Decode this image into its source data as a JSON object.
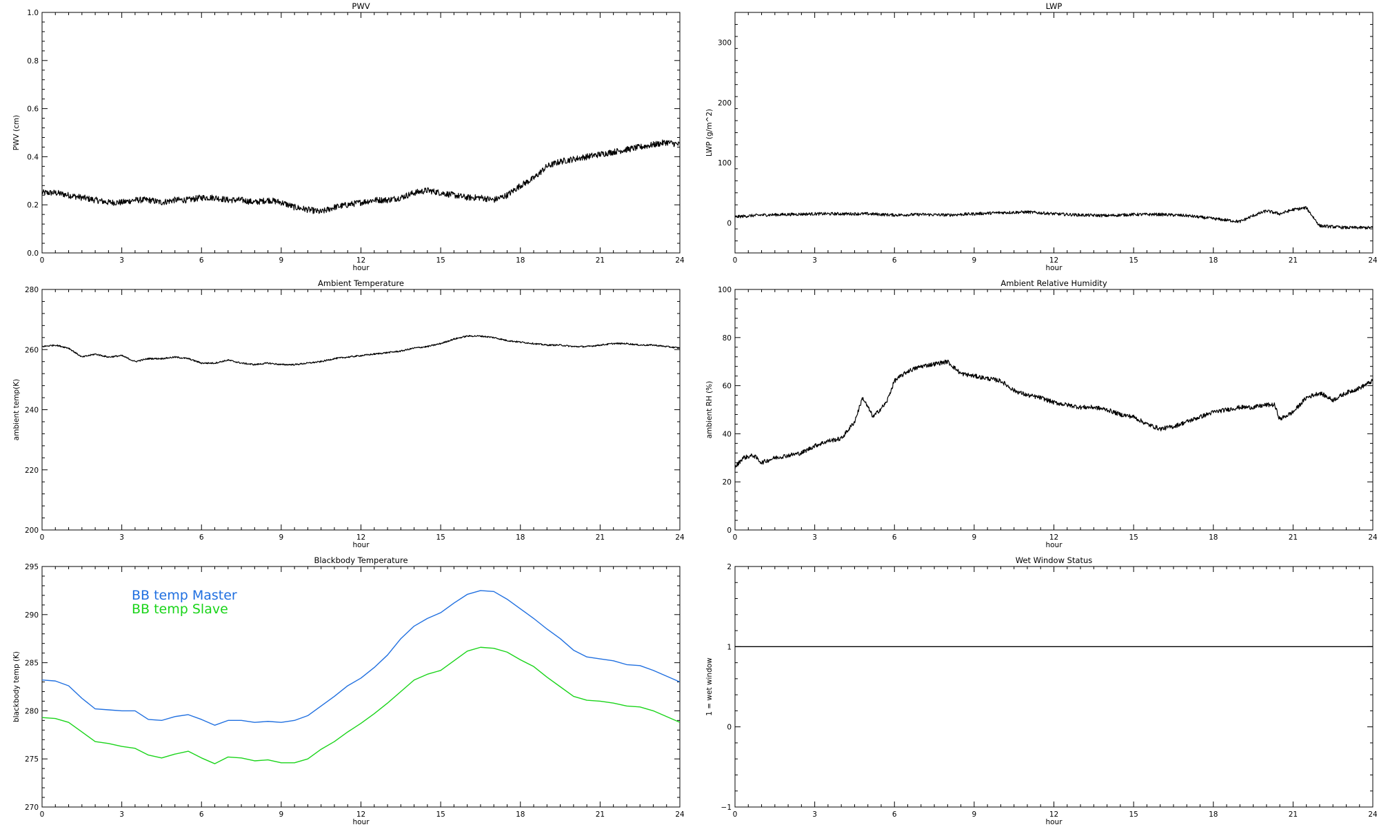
{
  "chart_data": [
    {
      "type": "line",
      "title": "PWV",
      "xlabel": "hour",
      "ylabel": "PWV (cm)",
      "xlim": [
        0,
        24
      ],
      "ylim": [
        0,
        1
      ],
      "xticks": [
        0,
        3,
        6,
        9,
        12,
        15,
        18,
        21,
        24
      ],
      "yticks": [
        0,
        0.2,
        0.4,
        0.6,
        0.8,
        1.0
      ],
      "yticklabels": [
        "0.0",
        "0.2",
        "0.4",
        "0.6",
        "0.8",
        "1.0"
      ],
      "grid": false,
      "series": [
        {
          "color": "#000000",
          "noise": 0.013,
          "x": [
            0,
            0.5,
            1,
            1.5,
            2,
            2.5,
            3,
            3.5,
            4,
            4.5,
            5,
            5.5,
            6,
            6.5,
            7,
            7.5,
            8,
            8.5,
            9,
            9.5,
            10,
            10.5,
            11,
            11.5,
            12,
            12.5,
            13,
            13.5,
            14,
            14.5,
            15,
            15.5,
            16,
            16.5,
            17,
            17.5,
            18,
            18.5,
            19,
            19.5,
            20,
            20.5,
            21,
            21.5,
            22,
            22.5,
            23,
            23.5,
            24
          ],
          "y": [
            0.25,
            0.25,
            0.24,
            0.23,
            0.22,
            0.21,
            0.21,
            0.22,
            0.22,
            0.21,
            0.22,
            0.22,
            0.23,
            0.23,
            0.22,
            0.22,
            0.21,
            0.22,
            0.21,
            0.19,
            0.18,
            0.17,
            0.19,
            0.2,
            0.21,
            0.22,
            0.22,
            0.23,
            0.25,
            0.26,
            0.25,
            0.24,
            0.23,
            0.23,
            0.22,
            0.24,
            0.28,
            0.31,
            0.36,
            0.38,
            0.39,
            0.4,
            0.41,
            0.42,
            0.43,
            0.44,
            0.45,
            0.46,
            0.45
          ]
        }
      ]
    },
    {
      "type": "line",
      "title": "LWP",
      "xlabel": "hour",
      "ylabel": "LWP (g/m^2)",
      "xlim": [
        0,
        24
      ],
      "ylim": [
        -50,
        350
      ],
      "xticks": [
        0,
        3,
        6,
        9,
        12,
        15,
        18,
        21,
        24
      ],
      "yticks": [
        0,
        100,
        200,
        300
      ],
      "yticklabels": [
        "0",
        "100",
        "200",
        "300"
      ],
      "grid": false,
      "series": [
        {
          "color": "#000000",
          "noise": 2.5,
          "x": [
            0,
            1,
            2,
            3,
            4,
            5,
            6,
            7,
            8,
            9,
            10,
            11,
            12,
            13,
            14,
            15,
            16,
            17,
            18,
            19,
            19.5,
            20,
            20.5,
            21,
            21.5,
            22,
            23,
            24
          ],
          "y": [
            10,
            13,
            14,
            15,
            15,
            15,
            13,
            14,
            13,
            15,
            17,
            18,
            15,
            13,
            12,
            14,
            14,
            12,
            7,
            2,
            12,
            20,
            15,
            22,
            25,
            -5,
            -8,
            -8
          ]
        }
      ]
    },
    {
      "type": "line",
      "title": "Ambient Temperature",
      "xlabel": "hour",
      "ylabel": "ambient temp(K)",
      "xlim": [
        0,
        24
      ],
      "ylim": [
        200,
        280
      ],
      "xticks": [
        0,
        3,
        6,
        9,
        12,
        15,
        18,
        21,
        24
      ],
      "yticks": [
        200,
        220,
        240,
        260,
        280
      ],
      "yticklabels": [
        "200",
        "220",
        "240",
        "260",
        "280"
      ],
      "grid": false,
      "series": [
        {
          "color": "#000000",
          "noise": 0.25,
          "x": [
            0,
            0.5,
            1,
            1.5,
            2,
            2.5,
            3,
            3.5,
            4,
            4.5,
            5,
            5.5,
            6,
            6.5,
            7,
            7.5,
            8,
            8.5,
            9,
            9.5,
            10,
            10.5,
            11,
            11.5,
            12,
            12.5,
            13,
            13.5,
            14,
            14.5,
            15,
            15.5,
            16,
            16.5,
            17,
            17.5,
            18,
            18.5,
            19,
            19.5,
            20,
            20.5,
            21,
            21.5,
            22,
            22.5,
            23,
            23.5,
            24
          ],
          "y": [
            261,
            261.5,
            260.5,
            257.5,
            258.5,
            257.5,
            258,
            256,
            257,
            257,
            257.5,
            257,
            255.5,
            255.5,
            256.5,
            255.5,
            255,
            255.5,
            255,
            255,
            255.5,
            256,
            257,
            257.5,
            258,
            258.5,
            259,
            259.5,
            260.5,
            261,
            262,
            263.5,
            264.5,
            264.5,
            264,
            263,
            262.5,
            262,
            261.5,
            261.5,
            261,
            261,
            261.5,
            262,
            262,
            261.5,
            261.5,
            261,
            260.5
          ]
        }
      ]
    },
    {
      "type": "line",
      "title": "Ambient Relative Humidity",
      "xlabel": "hour",
      "ylabel": "ambient RH (%)",
      "xlim": [
        0,
        24
      ],
      "ylim": [
        0,
        100
      ],
      "xticks": [
        0,
        3,
        6,
        9,
        12,
        15,
        18,
        21,
        24
      ],
      "yticks": [
        0,
        20,
        40,
        60,
        80,
        100
      ],
      "yticklabels": [
        "0",
        "20",
        "40",
        "60",
        "80",
        "100"
      ],
      "grid": false,
      "series": [
        {
          "color": "#000000",
          "noise": 0.9,
          "x": [
            0,
            0.3,
            0.7,
            1,
            1.5,
            2,
            2.5,
            3,
            3.5,
            4,
            4.5,
            4.8,
            5.2,
            5.7,
            6,
            6.5,
            7,
            7.5,
            8,
            8.5,
            9,
            9.5,
            10,
            10.5,
            11,
            11.5,
            12,
            12.5,
            13,
            13.5,
            14,
            14.5,
            15,
            15.5,
            16,
            16.5,
            17,
            17.5,
            18,
            18.5,
            19,
            19.5,
            20,
            20.3,
            20.5,
            21,
            21.5,
            22,
            22.5,
            23,
            23.5,
            24
          ],
          "y": [
            26,
            30,
            31,
            28,
            30,
            31,
            32,
            35,
            37,
            38,
            45,
            55,
            47,
            53,
            62,
            66,
            68,
            69,
            70,
            65,
            64,
            63,
            62,
            58,
            56,
            55,
            53,
            52,
            51,
            51,
            50,
            48,
            47,
            44,
            42,
            43,
            45,
            47,
            49,
            50,
            51,
            51,
            52,
            52,
            46,
            49,
            55,
            57,
            54,
            57,
            59,
            62
          ]
        }
      ]
    },
    {
      "type": "line",
      "title": "Blackbody Temperature",
      "xlabel": "hour",
      "ylabel": "blackbody temp (K)",
      "xlim": [
        0,
        24
      ],
      "ylim": [
        270,
        295
      ],
      "xticks": [
        0,
        3,
        6,
        9,
        12,
        15,
        18,
        21,
        24
      ],
      "yticks": [
        270,
        275,
        280,
        285,
        290,
        295
      ],
      "yticklabels": [
        "270",
        "275",
        "280",
        "285",
        "290",
        "295"
      ],
      "grid": false,
      "legend": "top-left",
      "series": [
        {
          "name": "BB temp Master",
          "color": "#1f6fe0",
          "noise": 0,
          "x": [
            0,
            0.5,
            1,
            1.5,
            2,
            2.5,
            3,
            3.5,
            4,
            4.5,
            5,
            5.5,
            6,
            6.5,
            7,
            7.5,
            8,
            8.5,
            9,
            9.5,
            10,
            10.5,
            11,
            11.5,
            12,
            12.5,
            13,
            13.5,
            14,
            14.5,
            15,
            15.5,
            16,
            16.5,
            17,
            17.5,
            18,
            18.5,
            19,
            19.5,
            20,
            20.5,
            21,
            21.5,
            22,
            22.5,
            23,
            23.5,
            24
          ],
          "y": [
            283.2,
            283.1,
            282.6,
            281.3,
            280.2,
            280.1,
            280,
            280,
            279.1,
            279,
            279.4,
            279.6,
            279.1,
            278.5,
            279,
            279,
            278.8,
            278.9,
            278.8,
            279,
            279.5,
            280.5,
            281.5,
            282.6,
            283.4,
            284.5,
            285.8,
            287.5,
            288.8,
            289.6,
            290.2,
            291.2,
            292.1,
            292.5,
            292.4,
            291.6,
            290.6,
            289.6,
            288.5,
            287.5,
            286.3,
            285.6,
            285.4,
            285.2,
            284.8,
            284.7,
            284.2,
            283.6,
            283
          ]
        },
        {
          "name": "BB temp Slave",
          "color": "#19d419",
          "noise": 0,
          "x": [
            0,
            0.5,
            1,
            1.5,
            2,
            2.5,
            3,
            3.5,
            4,
            4.5,
            5,
            5.5,
            6,
            6.5,
            7,
            7.5,
            8,
            8.5,
            9,
            9.5,
            10,
            10.5,
            11,
            11.5,
            12,
            12.5,
            13,
            13.5,
            14,
            14.5,
            15,
            15.5,
            16,
            16.5,
            17,
            17.5,
            18,
            18.5,
            19,
            19.5,
            20,
            20.5,
            21,
            21.5,
            22,
            22.5,
            23,
            23.5,
            24
          ],
          "y": [
            279.3,
            279.2,
            278.8,
            277.8,
            276.8,
            276.6,
            276.3,
            276.1,
            275.4,
            275.1,
            275.5,
            275.8,
            275.1,
            274.5,
            275.2,
            275.1,
            274.8,
            274.9,
            274.6,
            274.6,
            275,
            276,
            276.8,
            277.8,
            278.7,
            279.7,
            280.8,
            282,
            283.2,
            283.8,
            284.2,
            285.2,
            286.2,
            286.6,
            286.5,
            286.1,
            285.3,
            284.6,
            283.5,
            282.5,
            281.5,
            281.1,
            281,
            280.8,
            280.5,
            280.4,
            280,
            279.4,
            278.8
          ]
        }
      ]
    },
    {
      "type": "line",
      "title": "Wet Window Status",
      "xlabel": "hour",
      "ylabel": "1 = wet window",
      "xlim": [
        0,
        24
      ],
      "ylim": [
        -1,
        2
      ],
      "xticks": [
        0,
        3,
        6,
        9,
        12,
        15,
        18,
        21,
        24
      ],
      "yticks": [
        -1,
        0,
        1,
        2
      ],
      "yticklabels": [
        "−1",
        "0",
        "1",
        "2"
      ],
      "grid": false,
      "series": [
        {
          "color": "#000000",
          "noise": 0,
          "x": [
            0,
            24
          ],
          "y": [
            1,
            1
          ]
        }
      ]
    }
  ]
}
